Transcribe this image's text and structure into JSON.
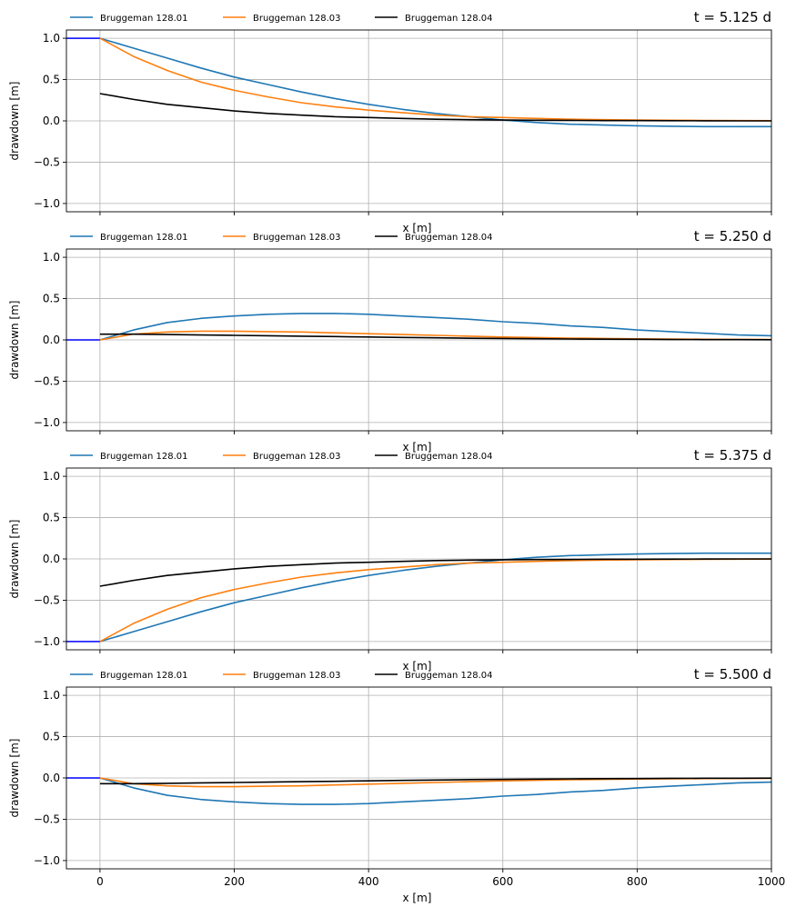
{
  "chart_data": [
    {
      "type": "line",
      "title": "t = 5.125 d",
      "xlabel": "x [m]",
      "ylabel": "drawdown [m]",
      "xlim": [
        -50,
        1000
      ],
      "ylim": [
        -1.1,
        1.1
      ],
      "xticks": [
        0,
        200,
        400,
        600,
        800,
        1000
      ],
      "yticks": [
        -1.0,
        -0.5,
        0.0,
        0.5,
        1.0
      ],
      "show_xticklabels": false,
      "grid": true,
      "legend": "top-left, outside above axes, 3 columns",
      "boundary": {
        "color": "#0000ff",
        "x": [
          -50,
          0
        ],
        "y": [
          1.0,
          1.0
        ]
      },
      "series": [
        {
          "name": "Bruggeman 128.01",
          "color": "#1f77b4",
          "x": [
            0,
            50,
            100,
            150,
            200,
            250,
            300,
            350,
            400,
            450,
            500,
            550,
            600,
            650,
            700,
            750,
            800,
            850,
            900,
            950,
            1000
          ],
          "y": [
            1.0,
            0.88,
            0.76,
            0.64,
            0.53,
            0.44,
            0.35,
            0.27,
            0.2,
            0.14,
            0.09,
            0.05,
            0.01,
            -0.02,
            -0.04,
            -0.05,
            -0.06,
            -0.065,
            -0.07,
            -0.07,
            -0.07
          ]
        },
        {
          "name": "Bruggeman 128.03",
          "color": "#ff7f0e",
          "x": [
            0,
            50,
            100,
            150,
            200,
            250,
            300,
            350,
            400,
            450,
            500,
            550,
            600,
            650,
            700,
            750,
            800,
            850,
            900,
            950,
            1000
          ],
          "y": [
            1.0,
            0.78,
            0.61,
            0.47,
            0.37,
            0.29,
            0.22,
            0.17,
            0.13,
            0.1,
            0.07,
            0.05,
            0.04,
            0.03,
            0.02,
            0.015,
            0.01,
            0.008,
            0.005,
            0.003,
            0.002
          ]
        },
        {
          "name": "Bruggeman 128.04",
          "color": "#000000",
          "x": [
            0,
            50,
            100,
            150,
            200,
            250,
            300,
            350,
            400,
            450,
            500,
            550,
            600,
            650,
            700,
            750,
            800,
            850,
            900,
            950,
            1000
          ],
          "y": [
            0.33,
            0.26,
            0.2,
            0.16,
            0.12,
            0.09,
            0.07,
            0.05,
            0.04,
            0.03,
            0.02,
            0.015,
            0.01,
            0.008,
            0.006,
            0.004,
            0.003,
            0.002,
            0.001,
            0.0,
            0.0
          ]
        }
      ]
    },
    {
      "type": "line",
      "title": "t = 5.250 d",
      "xlabel": "x [m]",
      "ylabel": "drawdown [m]",
      "xlim": [
        -50,
        1000
      ],
      "ylim": [
        -1.1,
        1.1
      ],
      "xticks": [
        0,
        200,
        400,
        600,
        800,
        1000
      ],
      "yticks": [
        -1.0,
        -0.5,
        0.0,
        0.5,
        1.0
      ],
      "show_xticklabels": false,
      "grid": true,
      "legend": "top-left, outside above axes, 3 columns",
      "boundary": {
        "color": "#0000ff",
        "x": [
          -50,
          0
        ],
        "y": [
          0.0,
          0.0
        ]
      },
      "series": [
        {
          "name": "Bruggeman 128.01",
          "color": "#1f77b4",
          "x": [
            0,
            50,
            100,
            150,
            200,
            250,
            300,
            350,
            400,
            450,
            500,
            550,
            600,
            650,
            700,
            750,
            800,
            850,
            900,
            950,
            1000
          ],
          "y": [
            0.0,
            0.12,
            0.21,
            0.26,
            0.29,
            0.31,
            0.32,
            0.32,
            0.31,
            0.29,
            0.27,
            0.25,
            0.22,
            0.2,
            0.17,
            0.15,
            0.12,
            0.1,
            0.08,
            0.06,
            0.05
          ]
        },
        {
          "name": "Bruggeman 128.03",
          "color": "#ff7f0e",
          "x": [
            0,
            50,
            100,
            150,
            200,
            250,
            300,
            350,
            400,
            450,
            500,
            550,
            600,
            650,
            700,
            750,
            800,
            850,
            900,
            950,
            1000
          ],
          "y": [
            0.0,
            0.07,
            0.095,
            0.105,
            0.105,
            0.1,
            0.095,
            0.085,
            0.075,
            0.065,
            0.055,
            0.045,
            0.035,
            0.028,
            0.022,
            0.017,
            0.013,
            0.01,
            0.008,
            0.006,
            0.005
          ]
        },
        {
          "name": "Bruggeman 128.04",
          "color": "#000000",
          "x": [
            0,
            50,
            100,
            150,
            200,
            250,
            300,
            350,
            400,
            450,
            500,
            550,
            600,
            650,
            700,
            750,
            800,
            850,
            900,
            950,
            1000
          ],
          "y": [
            0.07,
            0.07,
            0.065,
            0.06,
            0.055,
            0.05,
            0.045,
            0.04,
            0.035,
            0.03,
            0.025,
            0.02,
            0.017,
            0.014,
            0.011,
            0.009,
            0.007,
            0.005,
            0.004,
            0.003,
            0.002
          ]
        }
      ]
    },
    {
      "type": "line",
      "title": "t = 5.375 d",
      "xlabel": "x [m]",
      "ylabel": "drawdown [m]",
      "xlim": [
        -50,
        1000
      ],
      "ylim": [
        -1.1,
        1.1
      ],
      "xticks": [
        0,
        200,
        400,
        600,
        800,
        1000
      ],
      "yticks": [
        -1.0,
        -0.5,
        0.0,
        0.5,
        1.0
      ],
      "show_xticklabels": false,
      "grid": true,
      "legend": "top-left, outside above axes, 3 columns",
      "boundary": {
        "color": "#0000ff",
        "x": [
          -50,
          0
        ],
        "y": [
          -1.0,
          -1.0
        ]
      },
      "series": [
        {
          "name": "Bruggeman 128.01",
          "color": "#1f77b4",
          "x": [
            0,
            50,
            100,
            150,
            200,
            250,
            300,
            350,
            400,
            450,
            500,
            550,
            600,
            650,
            700,
            750,
            800,
            850,
            900,
            950,
            1000
          ],
          "y": [
            -1.0,
            -0.88,
            -0.76,
            -0.64,
            -0.53,
            -0.44,
            -0.35,
            -0.27,
            -0.2,
            -0.14,
            -0.09,
            -0.05,
            -0.01,
            0.02,
            0.04,
            0.05,
            0.06,
            0.065,
            0.07,
            0.07,
            0.07
          ]
        },
        {
          "name": "Bruggeman 128.03",
          "color": "#ff7f0e",
          "x": [
            0,
            50,
            100,
            150,
            200,
            250,
            300,
            350,
            400,
            450,
            500,
            550,
            600,
            650,
            700,
            750,
            800,
            850,
            900,
            950,
            1000
          ],
          "y": [
            -1.0,
            -0.78,
            -0.61,
            -0.47,
            -0.37,
            -0.29,
            -0.22,
            -0.17,
            -0.13,
            -0.1,
            -0.07,
            -0.05,
            -0.04,
            -0.03,
            -0.02,
            -0.015,
            -0.01,
            -0.008,
            -0.005,
            -0.003,
            -0.002
          ]
        },
        {
          "name": "Bruggeman 128.04",
          "color": "#000000",
          "x": [
            0,
            50,
            100,
            150,
            200,
            250,
            300,
            350,
            400,
            450,
            500,
            550,
            600,
            650,
            700,
            750,
            800,
            850,
            900,
            950,
            1000
          ],
          "y": [
            -0.33,
            -0.26,
            -0.2,
            -0.16,
            -0.12,
            -0.09,
            -0.07,
            -0.05,
            -0.04,
            -0.03,
            -0.02,
            -0.015,
            -0.01,
            -0.008,
            -0.006,
            -0.004,
            -0.003,
            -0.002,
            -0.001,
            0.0,
            0.0
          ]
        }
      ]
    },
    {
      "type": "line",
      "title": "t = 5.500 d",
      "xlabel": "x [m]",
      "ylabel": "drawdown [m]",
      "xlim": [
        -50,
        1000
      ],
      "ylim": [
        -1.1,
        1.1
      ],
      "xticks": [
        0,
        200,
        400,
        600,
        800,
        1000
      ],
      "yticks": [
        -1.0,
        -0.5,
        0.0,
        0.5,
        1.0
      ],
      "show_xticklabels": true,
      "grid": true,
      "legend": "top-left, outside above axes, 3 columns",
      "boundary": {
        "color": "#0000ff",
        "x": [
          -50,
          0
        ],
        "y": [
          0.0,
          0.0
        ]
      },
      "series": [
        {
          "name": "Bruggeman 128.01",
          "color": "#1f77b4",
          "x": [
            0,
            50,
            100,
            150,
            200,
            250,
            300,
            350,
            400,
            450,
            500,
            550,
            600,
            650,
            700,
            750,
            800,
            850,
            900,
            950,
            1000
          ],
          "y": [
            0.0,
            -0.12,
            -0.21,
            -0.26,
            -0.29,
            -0.31,
            -0.32,
            -0.32,
            -0.31,
            -0.29,
            -0.27,
            -0.25,
            -0.22,
            -0.2,
            -0.17,
            -0.15,
            -0.12,
            -0.1,
            -0.08,
            -0.06,
            -0.05
          ]
        },
        {
          "name": "Bruggeman 128.03",
          "color": "#ff7f0e",
          "x": [
            0,
            50,
            100,
            150,
            200,
            250,
            300,
            350,
            400,
            450,
            500,
            550,
            600,
            650,
            700,
            750,
            800,
            850,
            900,
            950,
            1000
          ],
          "y": [
            0.0,
            -0.07,
            -0.095,
            -0.105,
            -0.105,
            -0.1,
            -0.095,
            -0.085,
            -0.075,
            -0.065,
            -0.055,
            -0.045,
            -0.035,
            -0.028,
            -0.022,
            -0.017,
            -0.013,
            -0.01,
            -0.008,
            -0.006,
            -0.005
          ]
        },
        {
          "name": "Bruggeman 128.04",
          "color": "#000000",
          "x": [
            0,
            50,
            100,
            150,
            200,
            250,
            300,
            350,
            400,
            450,
            500,
            550,
            600,
            650,
            700,
            750,
            800,
            850,
            900,
            950,
            1000
          ],
          "y": [
            -0.07,
            -0.07,
            -0.065,
            -0.06,
            -0.055,
            -0.05,
            -0.045,
            -0.04,
            -0.035,
            -0.03,
            -0.025,
            -0.02,
            -0.017,
            -0.014,
            -0.011,
            -0.009,
            -0.007,
            -0.005,
            -0.004,
            -0.003,
            -0.002
          ]
        }
      ]
    }
  ],
  "colors": {
    "grid": "#b0b0b0",
    "axes": "#000000",
    "background": "#ffffff"
  }
}
